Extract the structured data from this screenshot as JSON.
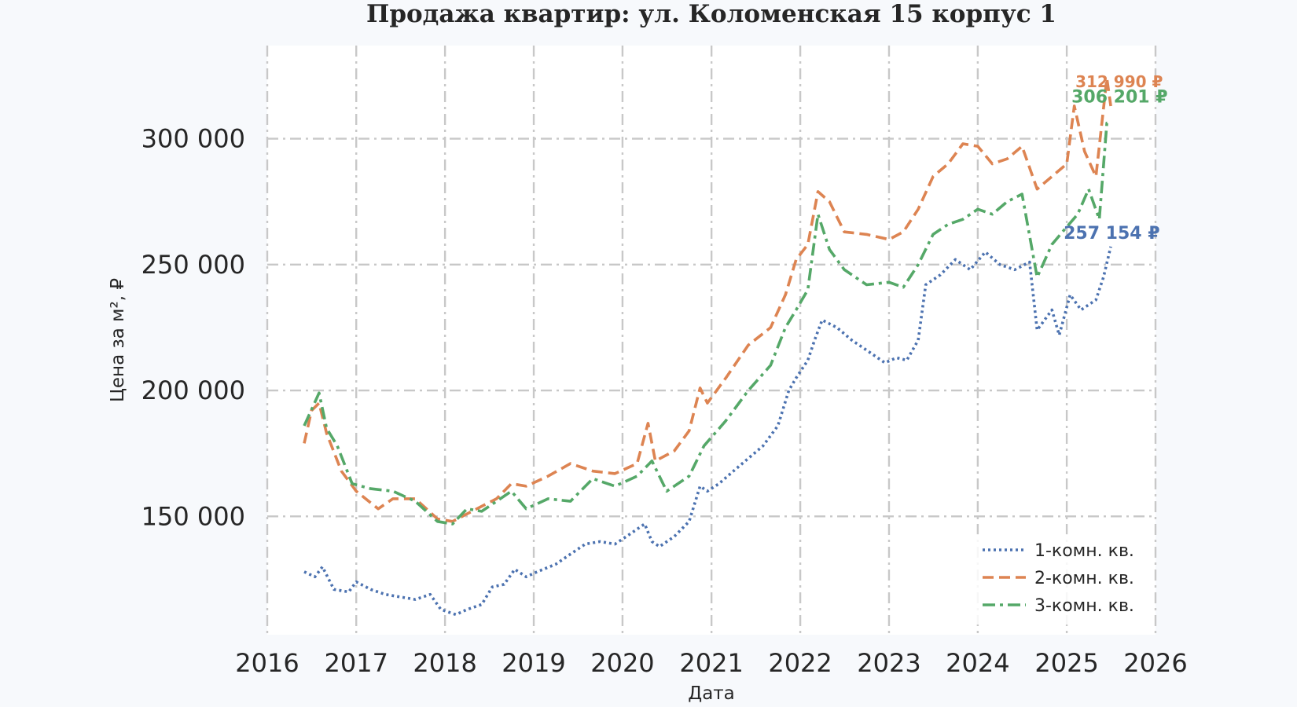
{
  "chart_data": {
    "type": "line",
    "title": "Продажа квартир: ул. Коломенская 15 корпус 1",
    "xlabel": "Дата",
    "ylabel": "Цена за м², ₽",
    "xlim": [
      "2016-01-01",
      "2026-01-01"
    ],
    "ylim": [
      103000,
      337000
    ],
    "x_ticks": [
      "2016",
      "2017",
      "2018",
      "2019",
      "2020",
      "2021",
      "2022",
      "2023",
      "2024",
      "2025",
      "2026"
    ],
    "y_ticks": [
      {
        "value": 150000,
        "label": "150 000"
      },
      {
        "value": 200000,
        "label": "200 000"
      },
      {
        "value": 250000,
        "label": "250 000"
      },
      {
        "value": 300000,
        "label": "300 000"
      }
    ],
    "grid": true,
    "legend_position": "bottom-right",
    "series": [
      {
        "name": "1-комн. кв.",
        "color": "#4c72b0",
        "style": "dotted",
        "end_label": "257 154 ₽",
        "points": [
          [
            "2016-06-01",
            128000
          ],
          [
            "2016-07-15",
            126000
          ],
          [
            "2016-08-15",
            130000
          ],
          [
            "2016-10-01",
            121000
          ],
          [
            "2016-12-01",
            120000
          ],
          [
            "2017-01-01",
            124000
          ],
          [
            "2017-03-01",
            121000
          ],
          [
            "2017-05-01",
            119000
          ],
          [
            "2017-07-01",
            118000
          ],
          [
            "2017-09-01",
            117000
          ],
          [
            "2017-11-01",
            119000
          ],
          [
            "2017-12-15",
            113000
          ],
          [
            "2018-02-15",
            111000
          ],
          [
            "2018-04-01",
            113000
          ],
          [
            "2018-06-01",
            115000
          ],
          [
            "2018-07-15",
            122000
          ],
          [
            "2018-09-01",
            123000
          ],
          [
            "2018-10-15",
            129000
          ],
          [
            "2018-12-01",
            126000
          ],
          [
            "2019-01-15",
            128000
          ],
          [
            "2019-04-01",
            131000
          ],
          [
            "2019-06-01",
            135000
          ],
          [
            "2019-08-01",
            139000
          ],
          [
            "2019-10-01",
            140000
          ],
          [
            "2019-12-01",
            139000
          ],
          [
            "2020-02-01",
            143000
          ],
          [
            "2020-04-01",
            147000
          ],
          [
            "2020-05-01",
            140000
          ],
          [
            "2020-06-01",
            138000
          ],
          [
            "2020-08-01",
            142000
          ],
          [
            "2020-10-01",
            148000
          ],
          [
            "2020-11-15",
            162000
          ],
          [
            "2020-12-15",
            160000
          ],
          [
            "2021-02-01",
            163000
          ],
          [
            "2021-04-01",
            168000
          ],
          [
            "2021-06-01",
            173000
          ],
          [
            "2021-08-01",
            178000
          ],
          [
            "2021-10-01",
            186000
          ],
          [
            "2021-11-15",
            200000
          ],
          [
            "2021-12-15",
            205000
          ],
          [
            "2022-02-01",
            212000
          ],
          [
            "2022-03-01",
            220000
          ],
          [
            "2022-04-01",
            228000
          ],
          [
            "2022-06-01",
            225000
          ],
          [
            "2022-08-01",
            220000
          ],
          [
            "2022-10-01",
            216000
          ],
          [
            "2022-12-15",
            211000
          ],
          [
            "2023-02-01",
            213000
          ],
          [
            "2023-03-15",
            212000
          ],
          [
            "2023-05-01",
            220000
          ],
          [
            "2023-06-01",
            242000
          ],
          [
            "2023-08-01",
            246000
          ],
          [
            "2023-10-01",
            252000
          ],
          [
            "2023-12-01",
            248000
          ],
          [
            "2024-02-01",
            255000
          ],
          [
            "2024-04-01",
            250000
          ],
          [
            "2024-06-01",
            248000
          ],
          [
            "2024-08-01",
            251000
          ],
          [
            "2024-09-01",
            224000
          ],
          [
            "2024-11-01",
            232000
          ],
          [
            "2024-12-01",
            222000
          ],
          [
            "2025-01-15",
            238000
          ],
          [
            "2025-03-01",
            232000
          ],
          [
            "2025-05-01",
            236000
          ],
          [
            "2025-06-01",
            245000
          ],
          [
            "2025-07-01",
            257154
          ]
        ]
      },
      {
        "name": "2-комн. кв.",
        "color": "#dd8452",
        "style": "dashed",
        "end_label": "312 990 ₽",
        "points": [
          [
            "2016-06-01",
            179000
          ],
          [
            "2016-07-01",
            192000
          ],
          [
            "2016-08-01",
            195000
          ],
          [
            "2016-09-01",
            183000
          ],
          [
            "2016-11-01",
            168000
          ],
          [
            "2017-01-01",
            160000
          ],
          [
            "2017-04-01",
            153000
          ],
          [
            "2017-06-01",
            157000
          ],
          [
            "2017-09-01",
            157000
          ],
          [
            "2017-12-01",
            149000
          ],
          [
            "2018-02-01",
            148000
          ],
          [
            "2018-04-01",
            151000
          ],
          [
            "2018-06-01",
            154000
          ],
          [
            "2018-08-01",
            157000
          ],
          [
            "2018-10-01",
            163000
          ],
          [
            "2018-12-01",
            162000
          ],
          [
            "2019-03-01",
            166000
          ],
          [
            "2019-06-01",
            171000
          ],
          [
            "2019-09-01",
            168000
          ],
          [
            "2019-12-01",
            167000
          ],
          [
            "2020-03-01",
            171000
          ],
          [
            "2020-04-15",
            187000
          ],
          [
            "2020-05-15",
            172000
          ],
          [
            "2020-08-01",
            176000
          ],
          [
            "2020-10-01",
            184000
          ],
          [
            "2020-11-15",
            201000
          ],
          [
            "2020-12-15",
            195000
          ],
          [
            "2021-03-01",
            205000
          ],
          [
            "2021-06-01",
            218000
          ],
          [
            "2021-09-01",
            225000
          ],
          [
            "2021-11-01",
            238000
          ],
          [
            "2021-12-15",
            252000
          ],
          [
            "2022-02-01",
            258000
          ],
          [
            "2022-03-15",
            279000
          ],
          [
            "2022-05-01",
            275000
          ],
          [
            "2022-07-01",
            263000
          ],
          [
            "2022-10-01",
            262000
          ],
          [
            "2023-01-01",
            260000
          ],
          [
            "2023-03-01",
            263000
          ],
          [
            "2023-05-01",
            272000
          ],
          [
            "2023-07-01",
            285000
          ],
          [
            "2023-09-01",
            290000
          ],
          [
            "2023-11-01",
            298000
          ],
          [
            "2024-01-01",
            297000
          ],
          [
            "2024-03-01",
            290000
          ],
          [
            "2024-05-01",
            292000
          ],
          [
            "2024-07-01",
            297000
          ],
          [
            "2024-09-01",
            280000
          ],
          [
            "2024-11-01",
            285000
          ],
          [
            "2025-01-01",
            290000
          ],
          [
            "2025-02-01",
            313000
          ],
          [
            "2025-03-15",
            295000
          ],
          [
            "2025-05-01",
            285000
          ],
          [
            "2025-06-15",
            324000
          ],
          [
            "2025-07-01",
            312990
          ]
        ]
      },
      {
        "name": "3-комн. кв.",
        "color": "#55a868",
        "style": "dashdot",
        "end_label": "306 201 ₽",
        "points": [
          [
            "2016-06-01",
            186000
          ],
          [
            "2016-08-01",
            199000
          ],
          [
            "2016-09-01",
            185000
          ],
          [
            "2016-10-15",
            178000
          ],
          [
            "2016-12-15",
            163000
          ],
          [
            "2017-03-01",
            161000
          ],
          [
            "2017-06-01",
            160000
          ],
          [
            "2017-09-01",
            156000
          ],
          [
            "2017-12-01",
            148000
          ],
          [
            "2018-02-01",
            147000
          ],
          [
            "2018-04-01",
            153000
          ],
          [
            "2018-06-01",
            152000
          ],
          [
            "2018-08-01",
            156000
          ],
          [
            "2018-10-01",
            160000
          ],
          [
            "2018-12-01",
            153000
          ],
          [
            "2019-03-01",
            157000
          ],
          [
            "2019-06-01",
            156000
          ],
          [
            "2019-09-01",
            165000
          ],
          [
            "2019-12-01",
            162000
          ],
          [
            "2020-03-01",
            166000
          ],
          [
            "2020-05-01",
            172000
          ],
          [
            "2020-07-01",
            160000
          ],
          [
            "2020-10-01",
            166000
          ],
          [
            "2020-12-01",
            178000
          ],
          [
            "2021-03-01",
            188000
          ],
          [
            "2021-06-01",
            200000
          ],
          [
            "2021-09-01",
            210000
          ],
          [
            "2021-11-01",
            225000
          ],
          [
            "2021-12-15",
            232000
          ],
          [
            "2022-02-01",
            240000
          ],
          [
            "2022-03-15",
            270000
          ],
          [
            "2022-05-01",
            256000
          ],
          [
            "2022-07-01",
            248000
          ],
          [
            "2022-10-01",
            242000
          ],
          [
            "2023-01-01",
            243000
          ],
          [
            "2023-03-01",
            241000
          ],
          [
            "2023-05-01",
            250000
          ],
          [
            "2023-07-01",
            262000
          ],
          [
            "2023-09-01",
            266000
          ],
          [
            "2023-11-01",
            268000
          ],
          [
            "2024-01-01",
            272000
          ],
          [
            "2024-03-01",
            270000
          ],
          [
            "2024-05-01",
            275000
          ],
          [
            "2024-07-01",
            278000
          ],
          [
            "2024-09-01",
            245000
          ],
          [
            "2024-11-01",
            258000
          ],
          [
            "2025-01-01",
            265000
          ],
          [
            "2025-02-15",
            270000
          ],
          [
            "2025-04-01",
            280000
          ],
          [
            "2025-05-15",
            268000
          ],
          [
            "2025-06-15",
            306201
          ],
          [
            "2025-07-01",
            306201
          ]
        ]
      }
    ]
  }
}
